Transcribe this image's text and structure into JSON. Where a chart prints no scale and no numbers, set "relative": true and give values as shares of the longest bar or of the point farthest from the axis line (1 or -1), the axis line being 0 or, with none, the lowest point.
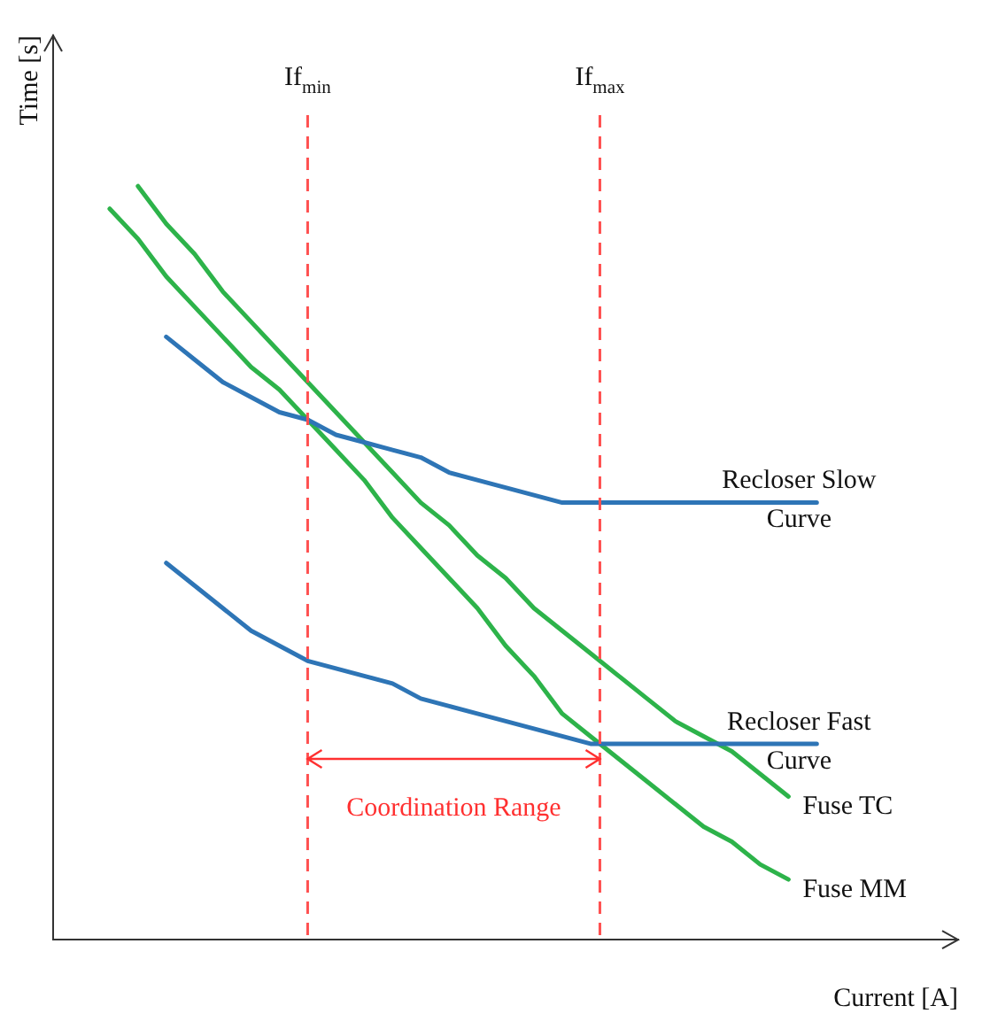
{
  "chart_data": {
    "type": "line",
    "relative": true,
    "xlabel": "Current [A]",
    "ylabel": "Time [s]",
    "legend": false,
    "grid": false,
    "marker": "none",
    "line_style": "solid",
    "categories": [
      null,
      null,
      null,
      null,
      null,
      null,
      null,
      null,
      null,
      null,
      null,
      null,
      null,
      null,
      null,
      null,
      null,
      null,
      null,
      null,
      null,
      null,
      null,
      null,
      null,
      null,
      null,
      null,
      null,
      null,
      null,
      null,
      null
    ],
    "series": [
      {
        "name": "Recloser Slow Curve",
        "color": "#2e75b6",
        "values": [
          null,
          null,
          null,
          null,
          0.8,
          0.77,
          0.74,
          0.72,
          0.7,
          0.69,
          0.67,
          0.66,
          0.65,
          0.64,
          0.62,
          0.61,
          0.6,
          0.59,
          0.58,
          0.58,
          0.58,
          0.58,
          0.58,
          0.58,
          0.58,
          0.58,
          0.58,
          0.58,
          null,
          null,
          null,
          null,
          null
        ]
      },
      {
        "name": "Recloser Fast Curve",
        "color": "#2e75b6",
        "values": [
          null,
          null,
          null,
          null,
          0.5,
          0.47,
          0.44,
          0.41,
          0.39,
          0.37,
          0.36,
          0.35,
          0.34,
          0.32,
          0.31,
          0.3,
          0.29,
          0.28,
          0.27,
          0.26,
          0.26,
          0.26,
          0.26,
          0.26,
          0.26,
          0.26,
          0.26,
          0.26,
          null,
          null,
          null,
          null,
          null
        ]
      },
      {
        "name": "Fuse TC",
        "color": "#2db34a",
        "values": [
          null,
          null,
          null,
          1.0,
          0.95,
          0.91,
          0.86,
          0.82,
          0.78,
          0.74,
          0.7,
          0.66,
          0.62,
          0.58,
          0.55,
          0.51,
          0.48,
          0.44,
          0.41,
          0.38,
          0.35,
          0.32,
          0.29,
          0.27,
          0.25,
          0.22,
          0.19,
          null,
          null,
          null,
          null,
          null,
          null
        ]
      },
      {
        "name": "Fuse MM",
        "color": "#2db34a",
        "values": [
          null,
          null,
          0.97,
          0.93,
          0.88,
          0.84,
          0.8,
          0.76,
          0.73,
          0.69,
          0.65,
          0.61,
          0.56,
          0.52,
          0.48,
          0.44,
          0.39,
          0.35,
          0.3,
          0.27,
          0.24,
          0.21,
          0.18,
          0.15,
          0.13,
          0.1,
          0.08,
          null,
          null,
          null,
          null,
          null,
          null
        ]
      }
    ],
    "annotations": [
      "If$_{min}$",
      "If$_{max}$",
      "Coordination Range"
    ]
  }
}
